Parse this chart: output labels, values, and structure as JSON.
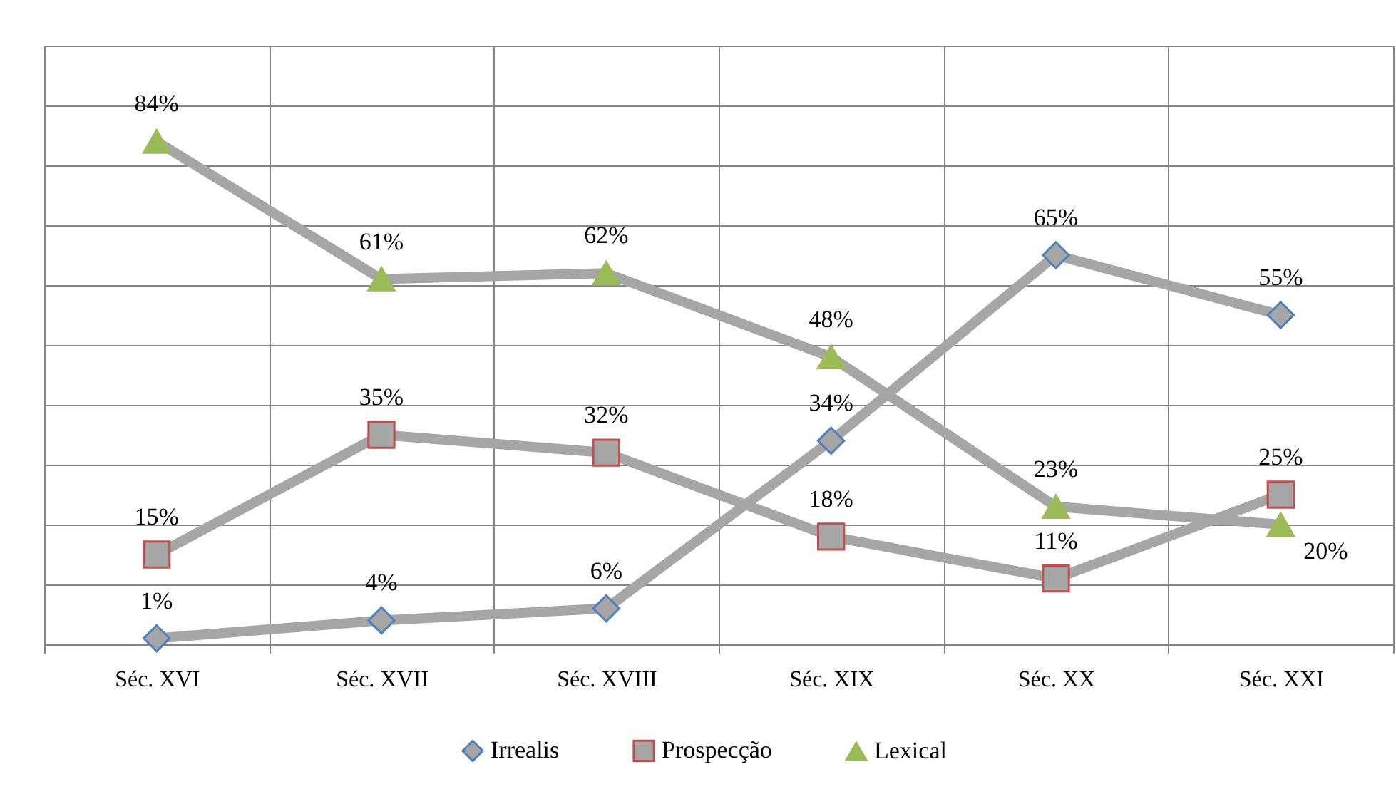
{
  "chart_data": {
    "type": "line",
    "categories": [
      "Séc. XVI",
      "Séc. XVII",
      "Séc. XVIII",
      "Séc. XIX",
      "Séc. XX",
      "Séc. XXI"
    ],
    "series": [
      {
        "name": "Irrealis",
        "color": "#a6a6a6",
        "marker": "diamond",
        "colors": [
          "#4f81bd",
          "#4f81bd",
          "#4f81bd",
          "#4f81bd",
          "#4f81bd",
          "#4f81bd"
        ],
        "values": [
          1,
          4,
          6,
          34,
          65,
          55
        ],
        "value_labels": [
          "1%",
          "4%",
          "6%",
          "34%",
          "65%",
          "55%"
        ]
      },
      {
        "name": "Prospecção",
        "color": "#a6a6a6",
        "marker": "square",
        "colors": [
          "#c0504d",
          "#c0504d",
          "#c0504d",
          "#c0504d",
          "#c0504d",
          "#c0504d"
        ],
        "values": [
          15,
          35,
          32,
          18,
          11,
          25
        ],
        "value_labels": [
          "15%",
          "35%",
          "32%",
          "18%",
          "11%",
          "25%"
        ]
      },
      {
        "name": "Lexical",
        "color": "#a6a6a6",
        "marker": "triangle",
        "colors": [
          "#9bbb59",
          "#9bbb59",
          "#9bbb59",
          "#9bbb59",
          "#9bbb59",
          "#9bbb59"
        ],
        "values": [
          84,
          61,
          62,
          48,
          23,
          20
        ],
        "value_labels": [
          "84%",
          "61%",
          "62%",
          "48%",
          "23%",
          "20%"
        ]
      }
    ],
    "ylim": [
      0,
      100
    ],
    "yticks": [
      {
        "value": 0,
        "label": null
      },
      {
        "value": 10,
        "label": null
      },
      {
        "value": 20,
        "label": null
      },
      {
        "value": 30,
        "label": null
      },
      {
        "value": 40,
        "label": null
      },
      {
        "value": 50,
        "label": null
      },
      {
        "value": 60,
        "label": null
      },
      {
        "value": 70,
        "label": null
      },
      {
        "value": 80,
        "label": null
      },
      {
        "value": 90,
        "label": null
      },
      {
        "value": 100,
        "label": null
      }
    ],
    "tick_labels": "x",
    "grid": true,
    "legend": "bottom",
    "line_style": "solid"
  }
}
